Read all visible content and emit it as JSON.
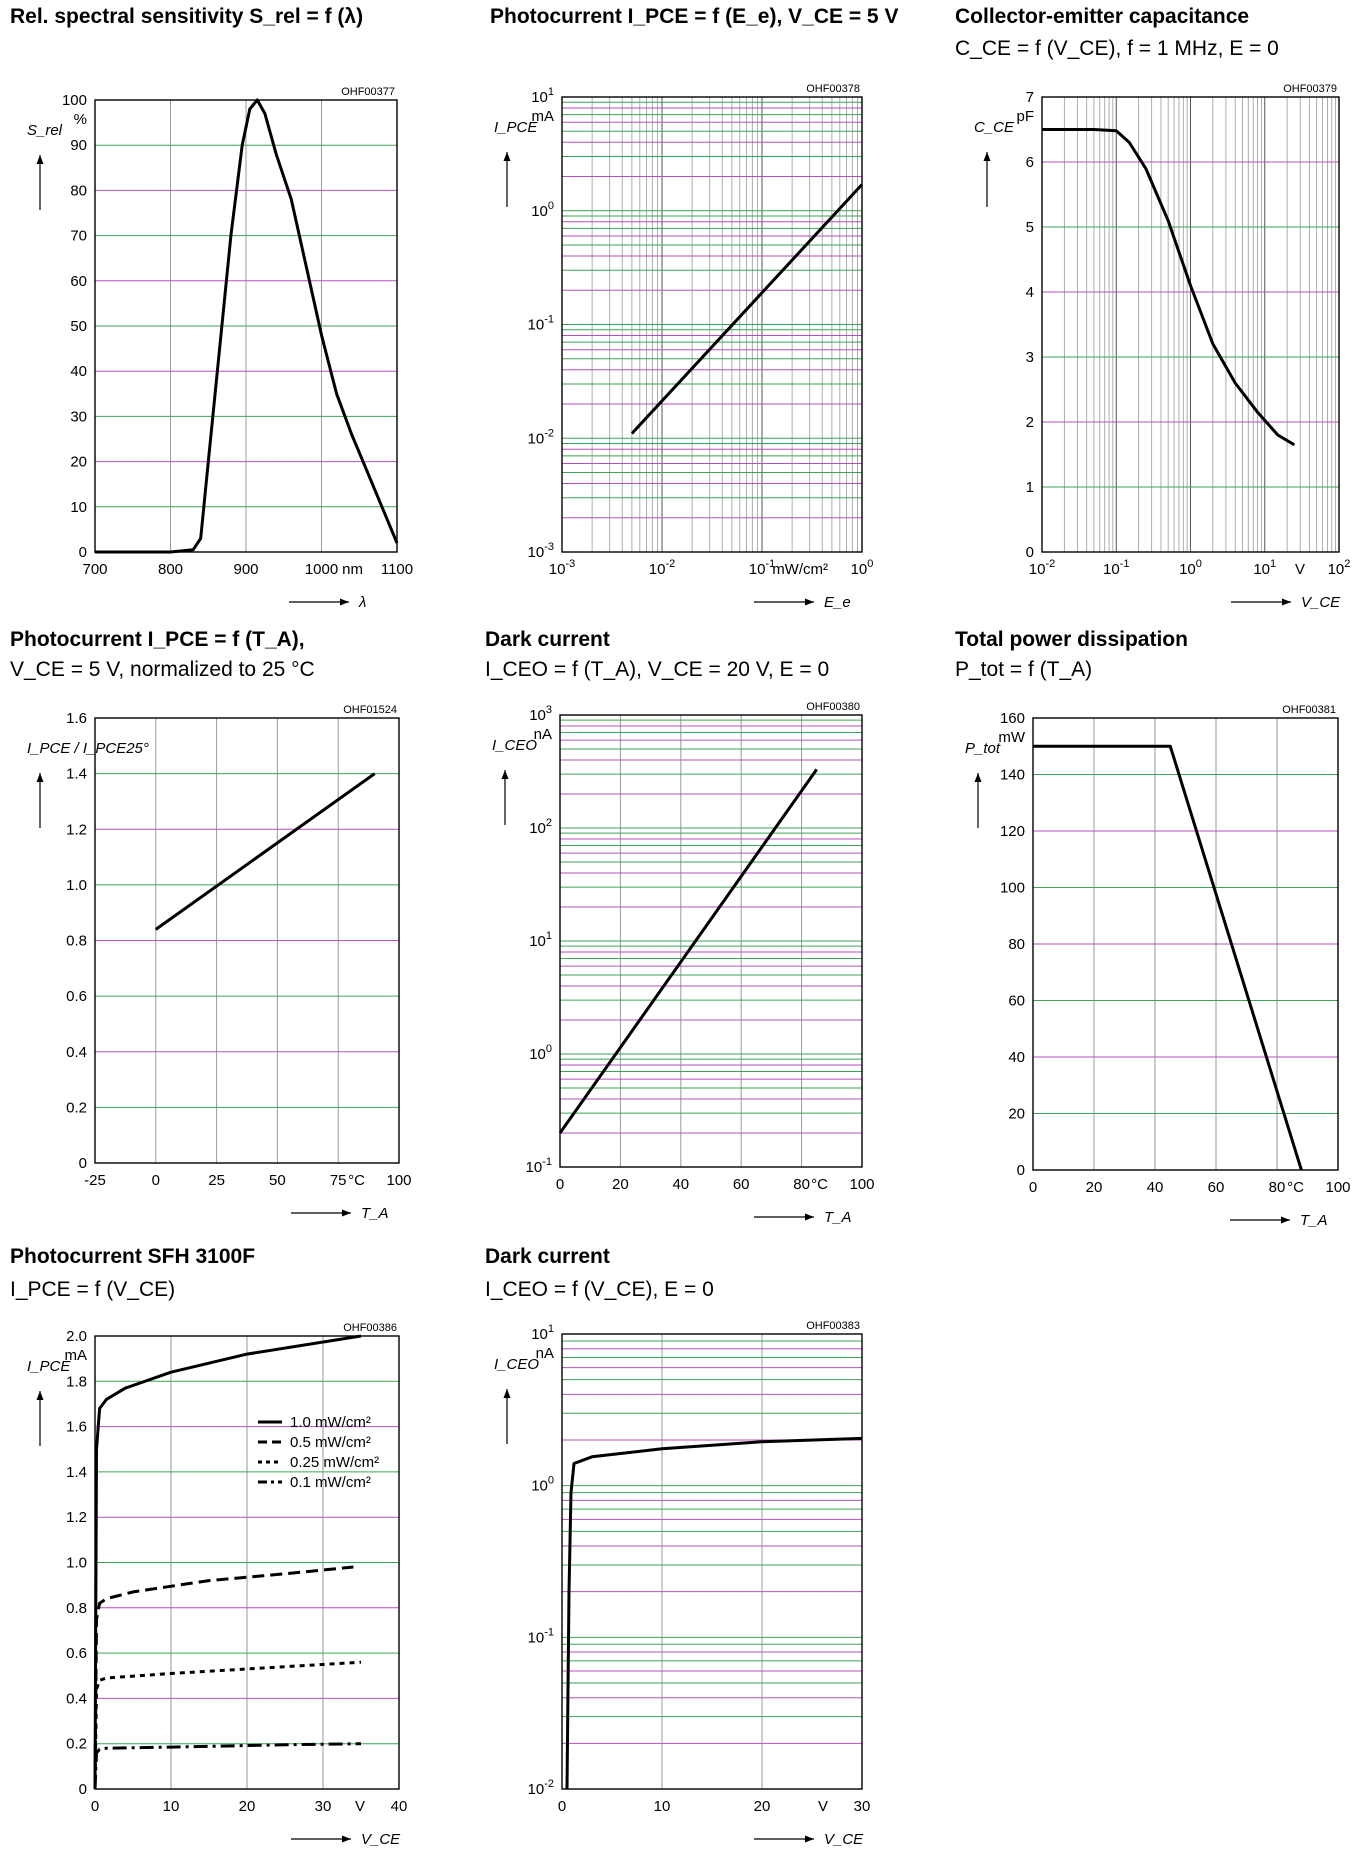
{
  "chart_data": [
    {
      "id": "c1",
      "type": "line",
      "title": "Rel. spectral sensitivity S_rel = f (λ)",
      "code": "OHF00377",
      "xlabel": "λ",
      "ylabel": "S_rel",
      "xunit": "nm",
      "yunit": "%",
      "xscale": "linear",
      "yscale": "linear",
      "xlim": [
        700,
        1100
      ],
      "ylim": [
        0,
        100
      ],
      "xticks": [
        "700",
        "800",
        "900",
        "1000",
        "1100"
      ],
      "yticks": [
        "0",
        "10",
        "20",
        "30",
        "40",
        "50",
        "60",
        "70",
        "80",
        "90",
        "100"
      ],
      "grid": true,
      "series": [
        {
          "points": [
            [
              700,
              0
            ],
            [
              800,
              0
            ],
            [
              830,
              0.5
            ],
            [
              840,
              3
            ],
            [
              850,
              20
            ],
            [
              865,
              45
            ],
            [
              880,
              70
            ],
            [
              895,
              90
            ],
            [
              905,
              98
            ],
            [
              915,
              100
            ],
            [
              925,
              97
            ],
            [
              940,
              88
            ],
            [
              960,
              78
            ],
            [
              980,
              63
            ],
            [
              1000,
              48
            ],
            [
              1020,
              35
            ],
            [
              1040,
              26
            ],
            [
              1060,
              18
            ],
            [
              1080,
              10
            ],
            [
              1100,
              2
            ]
          ]
        }
      ]
    },
    {
      "id": "c2",
      "type": "line",
      "title": "Photocurrent I_PCE = f (E_e), V_CE = 5 V",
      "code": "OHF00378",
      "xlabel": "E_e",
      "ylabel": "I_PCE",
      "xunit": "mW/cm²",
      "yunit": "mA",
      "xscale": "log",
      "yscale": "log",
      "xlim": [
        0.001,
        1
      ],
      "ylim": [
        0.001,
        10
      ],
      "xticks": [
        "10^-3",
        "10^-2",
        "10^-1",
        "10^0"
      ],
      "yticks": [
        "10^-3",
        "10^-2",
        "10^-1",
        "10^0",
        "10^1"
      ],
      "grid": true,
      "series": [
        {
          "points": [
            [
              0.005,
              0.011
            ],
            [
              1.0,
              1.7
            ]
          ]
        }
      ]
    },
    {
      "id": "c3",
      "type": "line",
      "title": "Collector-emitter capacitance",
      "subtitle": "C_CE = f (V_CE), f = 1 MHz, E = 0",
      "code": "OHF00379",
      "xlabel": "V_CE",
      "ylabel": "C_CE",
      "xunit": "V",
      "yunit": "pF",
      "xscale": "log",
      "yscale": "linear",
      "xlim": [
        0.01,
        100
      ],
      "ylim": [
        0,
        7
      ],
      "xticks": [
        "10^-2",
        "10^-1",
        "10^0",
        "10^1",
        "10^2"
      ],
      "yticks": [
        "0",
        "1",
        "2",
        "3",
        "4",
        "5",
        "6",
        "7"
      ],
      "grid": true,
      "series": [
        {
          "points": [
            [
              0.01,
              6.5
            ],
            [
              0.05,
              6.5
            ],
            [
              0.1,
              6.48
            ],
            [
              0.15,
              6.3
            ],
            [
              0.25,
              5.9
            ],
            [
              0.5,
              5.1
            ],
            [
              1,
              4.1
            ],
            [
              2,
              3.2
            ],
            [
              4,
              2.6
            ],
            [
              8,
              2.15
            ],
            [
              15,
              1.8
            ],
            [
              25,
              1.65
            ]
          ]
        }
      ]
    },
    {
      "id": "c4",
      "type": "line",
      "title": "Photocurrent I_PCE = f (T_A),",
      "subtitle": "V_CE = 5 V, normalized to 25 °C",
      "code": "OHF01524",
      "xlabel": "T_A",
      "ylabel": "I_PCE / I_PCE25°",
      "xunit": "°C",
      "xscale": "linear",
      "yscale": "linear",
      "xlim": [
        -25,
        100
      ],
      "ylim": [
        0,
        1.6
      ],
      "xticks": [
        "-25",
        "0",
        "25",
        "50",
        "75",
        "100"
      ],
      "yticks": [
        "0",
        "0.2",
        "0.4",
        "0.6",
        "0.8",
        "1.0",
        "1.2",
        "1.4",
        "1.6"
      ],
      "grid": true,
      "series": [
        {
          "points": [
            [
              0,
              0.84
            ],
            [
              90,
              1.4
            ]
          ]
        }
      ]
    },
    {
      "id": "c5",
      "type": "line",
      "title": "Dark current",
      "subtitle": "I_CEO = f (T_A), V_CE = 20 V, E = 0",
      "code": "OHF00380",
      "xlabel": "T_A",
      "ylabel": "I_CEO",
      "xunit": "°C",
      "yunit": "nA",
      "xscale": "linear",
      "yscale": "log",
      "xlim": [
        0,
        100
      ],
      "ylim": [
        0.1,
        1000
      ],
      "xticks": [
        "0",
        "20",
        "40",
        "60",
        "80",
        "100"
      ],
      "yticks": [
        "10^-1",
        "10^0",
        "10^1",
        "10^2",
        "10^3"
      ],
      "grid": true,
      "series": [
        {
          "points": [
            [
              0,
              0.2
            ],
            [
              85,
              330
            ]
          ]
        }
      ]
    },
    {
      "id": "c6",
      "type": "line",
      "title": "Total power dissipation",
      "subtitle": "P_tot = f (T_A)",
      "code": "OHF00381",
      "xlabel": "T_A",
      "ylabel": "P_tot",
      "xunit": "°C",
      "yunit": "mW",
      "xscale": "linear",
      "yscale": "linear",
      "xlim": [
        0,
        100
      ],
      "ylim": [
        0,
        160
      ],
      "xticks": [
        "0",
        "20",
        "40",
        "60",
        "80",
        "100"
      ],
      "yticks": [
        "0",
        "20",
        "40",
        "60",
        "80",
        "100",
        "120",
        "140",
        "160"
      ],
      "grid": true,
      "series": [
        {
          "points": [
            [
              0,
              150
            ],
            [
              45,
              150
            ],
            [
              88,
              0
            ]
          ]
        }
      ]
    },
    {
      "id": "c7",
      "type": "line",
      "title": "Photocurrent SFH 3100F",
      "subtitle": "I_PCE = f (V_CE)",
      "code": "OHF00386",
      "xlabel": "V_CE",
      "ylabel": "I_PCE",
      "xunit": "V",
      "yunit": "mA",
      "xscale": "linear",
      "yscale": "linear",
      "xlim": [
        0,
        40
      ],
      "ylim": [
        0,
        2.0
      ],
      "xticks": [
        "0",
        "10",
        "20",
        "30",
        "40"
      ],
      "yticks": [
        "0",
        "0.2",
        "0.4",
        "0.6",
        "0.8",
        "1.0",
        "1.2",
        "1.4",
        "1.6",
        "1.8",
        "2.0"
      ],
      "grid": true,
      "legend": "top-right",
      "series": [
        {
          "name": "1.0 mW/cm²",
          "dash": "solid",
          "points": [
            [
              0,
              0
            ],
            [
              0.2,
              1.5
            ],
            [
              0.6,
              1.68
            ],
            [
              1.5,
              1.72
            ],
            [
              4,
              1.77
            ],
            [
              10,
              1.84
            ],
            [
              20,
              1.92
            ],
            [
              35,
              2.0
            ]
          ]
        },
        {
          "name": "0.5 mW/cm²",
          "dash": "dash",
          "points": [
            [
              0,
              0
            ],
            [
              0.2,
              0.75
            ],
            [
              0.6,
              0.82
            ],
            [
              1.5,
              0.84
            ],
            [
              5,
              0.87
            ],
            [
              15,
              0.92
            ],
            [
              25,
              0.95
            ],
            [
              34,
              0.98
            ]
          ]
        },
        {
          "name": "0.25 mW/cm²",
          "dash": "dot",
          "points": [
            [
              0,
              0
            ],
            [
              0.2,
              0.44
            ],
            [
              0.6,
              0.48
            ],
            [
              1.5,
              0.49
            ],
            [
              10,
              0.51
            ],
            [
              25,
              0.54
            ],
            [
              35,
              0.56
            ]
          ]
        },
        {
          "name": "0.1 mW/cm²",
          "dash": "dashdot",
          "points": [
            [
              0,
              0
            ],
            [
              0.2,
              0.16
            ],
            [
              0.6,
              0.175
            ],
            [
              1.5,
              0.18
            ],
            [
              10,
              0.185
            ],
            [
              25,
              0.195
            ],
            [
              35,
              0.2
            ]
          ]
        }
      ]
    },
    {
      "id": "c8",
      "type": "line",
      "title": "Dark current",
      "subtitle": "I_CEO = f (V_CE), E = 0",
      "code": "OHF00383",
      "xlabel": "V_CE",
      "ylabel": "I_CEO",
      "xunit": "V",
      "yunit": "nA",
      "xscale": "linear",
      "yscale": "log",
      "xlim": [
        0,
        30
      ],
      "ylim": [
        0.01,
        10
      ],
      "xticks": [
        "0",
        "10",
        "20",
        "30"
      ],
      "yticks": [
        "10^-2",
        "10^-1",
        "10^0",
        "10^1"
      ],
      "grid": true,
      "series": [
        {
          "points": [
            [
              0.5,
              0.01
            ],
            [
              0.7,
              0.2
            ],
            [
              0.9,
              0.9
            ],
            [
              1.2,
              1.4
            ],
            [
              3,
              1.55
            ],
            [
              10,
              1.75
            ],
            [
              20,
              1.95
            ],
            [
              30,
              2.05
            ]
          ]
        }
      ]
    }
  ]
}
